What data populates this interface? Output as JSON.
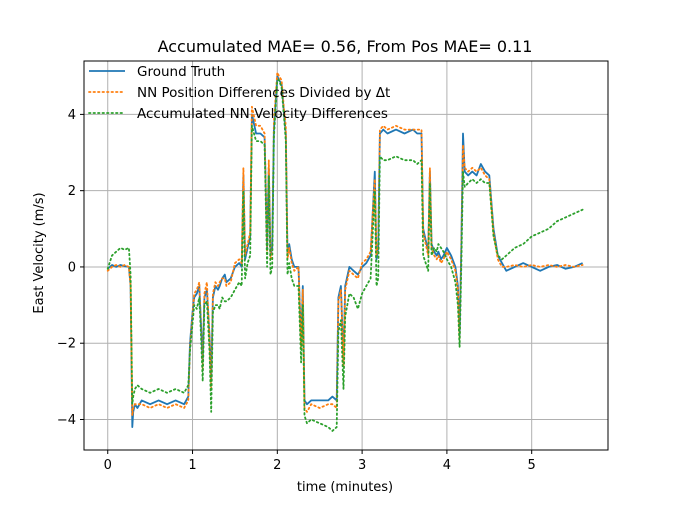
{
  "chart_data": {
    "type": "line",
    "title": "Accumulated MAE= 0.56, From Pos MAE= 0.11",
    "xlabel": "time (minutes)",
    "ylabel": "East Velocity (m/s)",
    "xlim": [
      -0.28,
      5.9
    ],
    "ylim": [
      -4.8,
      5.4
    ],
    "xticks": [
      0,
      1,
      2,
      3,
      4,
      5
    ],
    "yticks": [
      -4,
      -2,
      0,
      2,
      4
    ],
    "xtick_labels": [
      "0",
      "1",
      "2",
      "3",
      "4",
      "5"
    ],
    "ytick_labels": [
      "−4",
      "−2",
      "0",
      "2",
      "4"
    ],
    "grid": true,
    "legend_position": "upper-left",
    "series": [
      {
        "name": "Ground Truth",
        "color": "#1f77b4",
        "style": "solid",
        "x": [
          0,
          0.05,
          0.1,
          0.15,
          0.2,
          0.25,
          0.27,
          0.29,
          0.3,
          0.32,
          0.35,
          0.4,
          0.5,
          0.6,
          0.7,
          0.8,
          0.9,
          0.95,
          0.97,
          1.0,
          1.02,
          1.05,
          1.08,
          1.1,
          1.12,
          1.14,
          1.17,
          1.2,
          1.22,
          1.24,
          1.27,
          1.3,
          1.32,
          1.35,
          1.38,
          1.4,
          1.45,
          1.5,
          1.55,
          1.58,
          1.6,
          1.62,
          1.65,
          1.68,
          1.7,
          1.75,
          1.8,
          1.85,
          1.88,
          1.9,
          1.92,
          1.94,
          1.96,
          2.0,
          2.02,
          2.05,
          2.08,
          2.1,
          2.12,
          2.14,
          2.17,
          2.2,
          2.25,
          2.28,
          2.3,
          2.32,
          2.35,
          2.4,
          2.5,
          2.6,
          2.65,
          2.7,
          2.72,
          2.75,
          2.78,
          2.8,
          2.85,
          2.9,
          2.95,
          3.0,
          3.05,
          3.1,
          3.15,
          3.17,
          3.19,
          3.21,
          3.25,
          3.3,
          3.4,
          3.5,
          3.6,
          3.65,
          3.7,
          3.72,
          3.75,
          3.78,
          3.8,
          3.82,
          3.85,
          3.88,
          3.9,
          3.93,
          3.96,
          4.0,
          4.05,
          4.1,
          4.13,
          4.15,
          4.17,
          4.19,
          4.21,
          4.25,
          4.3,
          4.35,
          4.4,
          4.45,
          4.5,
          4.55,
          4.6,
          4.65,
          4.7,
          4.8,
          4.9,
          5.0,
          5.1,
          5.2,
          5.3,
          5.4,
          5.5,
          5.6
        ],
        "y": [
          -0.05,
          0.05,
          0.0,
          0.05,
          0.02,
          0.0,
          -0.5,
          -4.2,
          -3.8,
          -3.6,
          -3.7,
          -3.5,
          -3.6,
          -3.5,
          -3.6,
          -3.5,
          -3.6,
          -3.4,
          -2.0,
          -1.2,
          -0.8,
          -0.7,
          -0.5,
          -1.5,
          -2.5,
          -0.8,
          -0.6,
          -1.8,
          -3.0,
          -0.8,
          -0.5,
          -0.6,
          -0.5,
          -0.3,
          -0.2,
          -0.4,
          -0.3,
          0.0,
          0.1,
          0.0,
          2.4,
          0.2,
          0.5,
          0.8,
          4.0,
          3.5,
          3.5,
          3.4,
          0.5,
          2.6,
          0.3,
          0.5,
          3.6,
          5.0,
          4.9,
          4.8,
          4.0,
          3.5,
          0.3,
          0.6,
          0.2,
          0.0,
          0.0,
          -2.0,
          -0.5,
          -3.5,
          -3.6,
          -3.5,
          -3.5,
          -3.5,
          -3.4,
          -3.5,
          -0.8,
          -0.5,
          -2.5,
          -0.5,
          0.0,
          -0.1,
          -0.2,
          0.0,
          0.1,
          0.3,
          2.5,
          0.2,
          0.5,
          3.5,
          3.6,
          3.5,
          3.6,
          3.5,
          3.6,
          3.5,
          3.5,
          1.0,
          0.7,
          0.4,
          2.5,
          0.6,
          0.4,
          0.3,
          0.4,
          0.2,
          0.3,
          0.5,
          0.3,
          0.0,
          -0.5,
          -1.8,
          0.5,
          3.5,
          2.5,
          2.4,
          2.5,
          2.4,
          2.7,
          2.5,
          2.4,
          1.0,
          0.3,
          0.1,
          -0.1,
          0.0,
          0.1,
          0.0,
          -0.1,
          0.0,
          0.05,
          -0.05,
          0.0,
          0.1
        ]
      },
      {
        "name": "NN Position Differences Divided by Δt",
        "color": "#ff7f0e",
        "style": "dotted",
        "x": [
          0,
          0.05,
          0.1,
          0.15,
          0.2,
          0.25,
          0.27,
          0.29,
          0.3,
          0.32,
          0.35,
          0.4,
          0.5,
          0.6,
          0.7,
          0.8,
          0.9,
          0.95,
          0.97,
          1.0,
          1.02,
          1.05,
          1.08,
          1.1,
          1.12,
          1.14,
          1.17,
          1.2,
          1.22,
          1.24,
          1.27,
          1.3,
          1.32,
          1.35,
          1.38,
          1.4,
          1.45,
          1.5,
          1.55,
          1.58,
          1.6,
          1.62,
          1.65,
          1.68,
          1.7,
          1.75,
          1.8,
          1.85,
          1.88,
          1.9,
          1.92,
          1.94,
          1.96,
          2.0,
          2.02,
          2.05,
          2.08,
          2.1,
          2.12,
          2.14,
          2.17,
          2.2,
          2.25,
          2.28,
          2.3,
          2.32,
          2.35,
          2.4,
          2.5,
          2.6,
          2.65,
          2.7,
          2.72,
          2.75,
          2.78,
          2.8,
          2.85,
          2.9,
          2.95,
          3.0,
          3.05,
          3.1,
          3.15,
          3.17,
          3.19,
          3.21,
          3.25,
          3.3,
          3.4,
          3.5,
          3.6,
          3.65,
          3.7,
          3.72,
          3.75,
          3.78,
          3.8,
          3.82,
          3.85,
          3.88,
          3.9,
          3.93,
          3.96,
          4.0,
          4.05,
          4.1,
          4.13,
          4.15,
          4.17,
          4.19,
          4.21,
          4.25,
          4.3,
          4.35,
          4.4,
          4.45,
          4.5,
          4.55,
          4.6,
          4.65,
          4.7,
          4.8,
          4.9,
          5.0,
          5.1,
          5.2,
          5.3,
          5.4,
          5.5,
          5.6
        ],
        "y": [
          -0.1,
          0.0,
          0.05,
          0.0,
          0.05,
          0.0,
          -0.5,
          -3.9,
          -3.7,
          -3.6,
          -3.6,
          -3.6,
          -3.7,
          -3.6,
          -3.7,
          -3.6,
          -3.7,
          -3.5,
          -2.1,
          -1.3,
          -0.7,
          -0.6,
          -0.4,
          -1.6,
          -2.7,
          -0.7,
          -0.4,
          -1.9,
          -3.2,
          -0.7,
          -0.4,
          -0.5,
          -0.4,
          -0.3,
          -0.3,
          -0.5,
          -0.4,
          0.1,
          0.2,
          0.1,
          2.6,
          0.3,
          0.6,
          0.9,
          4.2,
          3.7,
          3.7,
          3.5,
          0.4,
          2.8,
          0.2,
          0.4,
          3.8,
          5.1,
          5.0,
          4.9,
          4.1,
          3.7,
          0.2,
          0.5,
          0.1,
          -0.1,
          0.0,
          -2.1,
          -0.6,
          -3.7,
          -3.8,
          -3.6,
          -3.7,
          -3.6,
          -3.6,
          -3.7,
          -0.9,
          -0.6,
          -2.6,
          -0.6,
          -0.1,
          -0.2,
          -0.3,
          0.1,
          0.2,
          0.4,
          2.3,
          0.3,
          0.6,
          3.6,
          3.7,
          3.6,
          3.7,
          3.6,
          3.6,
          3.6,
          3.6,
          0.9,
          0.6,
          0.3,
          2.6,
          0.5,
          0.3,
          0.2,
          0.3,
          0.1,
          0.2,
          0.4,
          0.2,
          -0.1,
          -0.6,
          -1.9,
          0.4,
          3.2,
          2.6,
          2.5,
          2.6,
          2.5,
          2.6,
          2.4,
          2.3,
          0.9,
          0.2,
          0.0,
          0.0,
          0.05,
          0.0,
          0.05,
          0.0,
          0.05,
          0.0,
          0.05,
          0.0,
          0.05
        ]
      },
      {
        "name": "Accumulated NN Velocity Differences",
        "color": "#2ca02c",
        "style": "dotted",
        "x": [
          0,
          0.05,
          0.1,
          0.15,
          0.2,
          0.25,
          0.27,
          0.29,
          0.3,
          0.32,
          0.35,
          0.4,
          0.5,
          0.6,
          0.7,
          0.8,
          0.9,
          0.95,
          0.97,
          1.0,
          1.02,
          1.05,
          1.08,
          1.1,
          1.12,
          1.14,
          1.17,
          1.2,
          1.22,
          1.24,
          1.27,
          1.3,
          1.32,
          1.35,
          1.38,
          1.4,
          1.45,
          1.5,
          1.55,
          1.58,
          1.6,
          1.62,
          1.65,
          1.68,
          1.7,
          1.75,
          1.8,
          1.85,
          1.88,
          1.9,
          1.92,
          1.94,
          1.96,
          2.0,
          2.02,
          2.05,
          2.08,
          2.1,
          2.12,
          2.14,
          2.17,
          2.2,
          2.25,
          2.28,
          2.3,
          2.32,
          2.35,
          2.4,
          2.5,
          2.6,
          2.65,
          2.7,
          2.72,
          2.75,
          2.78,
          2.8,
          2.85,
          2.9,
          2.95,
          3.0,
          3.05,
          3.1,
          3.15,
          3.17,
          3.19,
          3.21,
          3.25,
          3.3,
          3.4,
          3.5,
          3.6,
          3.65,
          3.7,
          3.72,
          3.75,
          3.78,
          3.8,
          3.82,
          3.85,
          3.88,
          3.9,
          3.93,
          3.96,
          4.0,
          4.05,
          4.1,
          4.13,
          4.15,
          4.17,
          4.19,
          4.21,
          4.25,
          4.3,
          4.35,
          4.4,
          4.45,
          4.5,
          4.55,
          4.6,
          4.65,
          4.7,
          4.8,
          4.9,
          5.0,
          5.1,
          5.2,
          5.3,
          5.4,
          5.5,
          5.6
        ],
        "y": [
          -0.05,
          0.3,
          0.4,
          0.5,
          0.45,
          0.5,
          -0.2,
          -3.6,
          -3.4,
          -3.2,
          -3.1,
          -3.2,
          -3.3,
          -3.2,
          -3.3,
          -3.2,
          -3.3,
          -3.1,
          -2.2,
          -1.5,
          -1.0,
          -1.1,
          -0.8,
          -1.8,
          -3.0,
          -1.0,
          -0.9,
          -2.2,
          -3.8,
          -1.2,
          -1.0,
          -1.0,
          -1.1,
          -0.8,
          -0.9,
          -0.9,
          -0.8,
          -0.6,
          -0.4,
          -0.5,
          2.0,
          -0.3,
          0.1,
          0.3,
          3.7,
          3.3,
          3.3,
          3.2,
          0.0,
          2.4,
          -0.2,
          0.0,
          3.4,
          4.9,
          4.9,
          4.7,
          3.9,
          3.3,
          -0.2,
          0.1,
          -0.3,
          -0.5,
          -0.5,
          -2.5,
          -1.0,
          -3.9,
          -4.1,
          -4.0,
          -4.1,
          -4.2,
          -4.3,
          -4.2,
          -1.7,
          -1.4,
          -3.2,
          -1.3,
          -0.7,
          -0.8,
          -1.1,
          -0.7,
          -0.5,
          -0.3,
          2.0,
          -0.5,
          -0.3,
          2.9,
          2.8,
          2.8,
          2.9,
          2.8,
          2.8,
          2.7,
          2.8,
          0.3,
          0.1,
          -0.1,
          2.2,
          0.3,
          0.5,
          0.4,
          0.6,
          0.5,
          0.4,
          0.2,
          0.0,
          -0.4,
          -1.0,
          -2.1,
          0.0,
          2.5,
          2.1,
          2.2,
          2.3,
          2.2,
          2.3,
          2.2,
          2.2,
          0.8,
          0.3,
          0.2,
          0.3,
          0.5,
          0.6,
          0.8,
          0.9,
          1.0,
          1.2,
          1.3,
          1.4,
          1.5
        ]
      }
    ]
  }
}
